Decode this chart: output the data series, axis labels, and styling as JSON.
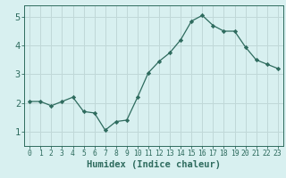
{
  "x": [
    0,
    1,
    2,
    3,
    4,
    5,
    6,
    7,
    8,
    9,
    10,
    11,
    12,
    13,
    14,
    15,
    16,
    17,
    18,
    19,
    20,
    21,
    22,
    23
  ],
  "y": [
    2.05,
    2.05,
    1.9,
    2.05,
    2.2,
    1.7,
    1.65,
    1.05,
    1.35,
    1.4,
    2.2,
    3.05,
    3.45,
    3.75,
    4.2,
    4.85,
    5.05,
    4.7,
    4.5,
    4.5,
    3.95,
    3.5,
    3.35,
    3.2
  ],
  "xlim": [
    -0.5,
    23.5
  ],
  "ylim": [
    0.5,
    5.4
  ],
  "yticks": [
    1,
    2,
    3,
    4,
    5
  ],
  "xticks": [
    0,
    1,
    2,
    3,
    4,
    5,
    6,
    7,
    8,
    9,
    10,
    11,
    12,
    13,
    14,
    15,
    16,
    17,
    18,
    19,
    20,
    21,
    22,
    23
  ],
  "xlabel": "Humidex (Indice chaleur)",
  "line_color": "#2e6b5e",
  "marker_color": "#2e6b5e",
  "bg_color": "#d8f0f0",
  "grid_color": "#c0d8d8",
  "axis_color": "#2e6b5e",
  "label_color": "#2e6b5e",
  "tick_color": "#2e6b5e",
  "xlabel_fontsize": 7.5,
  "ytick_fontsize": 7.5,
  "xtick_fontsize": 5.8
}
